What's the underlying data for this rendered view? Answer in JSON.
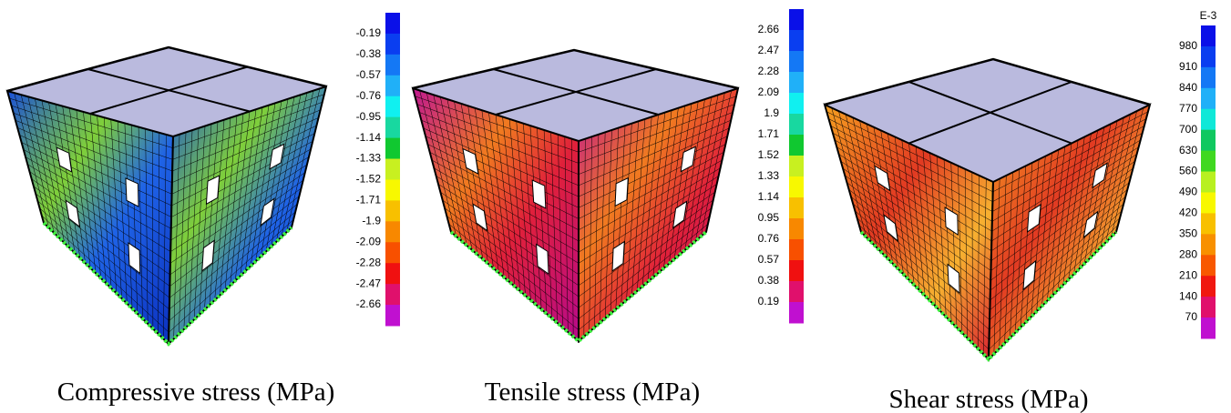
{
  "panels": [
    {
      "caption": "Compressive stress (MPa)",
      "legend": {
        "labels": [
          "-0.19",
          "-0.38",
          "-0.57",
          "-0.76",
          "-0.95",
          "-1.14",
          "-1.33",
          "-1.52",
          "-1.71",
          "-1.9",
          "-2.09",
          "-2.28",
          "-2.47",
          "-2.66"
        ]
      }
    },
    {
      "caption": "Tensile stress (MPa)",
      "legend": {
        "labels": [
          "2.66",
          "2.47",
          "2.28",
          "2.09",
          "1.9",
          "1.71",
          "1.52",
          "1.33",
          "1.14",
          "0.95",
          "0.76",
          "0.57",
          "0.38",
          "0.19"
        ]
      }
    },
    {
      "caption": "Shear stress (MPa)",
      "legend": {
        "unit": "E-3",
        "labels": [
          "980",
          "910",
          "840",
          "770",
          "700",
          "630",
          "560",
          "490",
          "420",
          "350",
          "280",
          "210",
          "140",
          "70"
        ]
      }
    }
  ]
}
